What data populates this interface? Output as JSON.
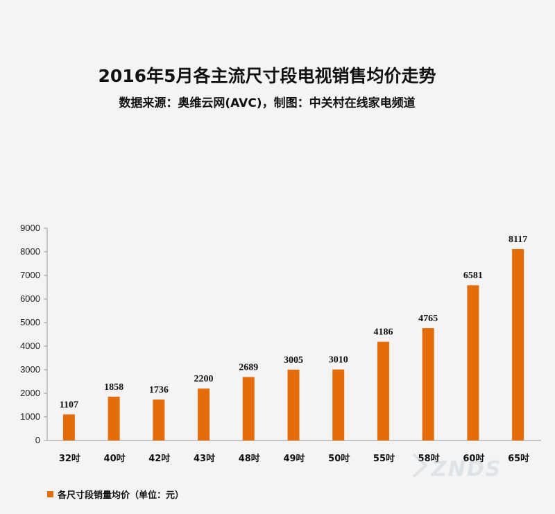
{
  "header": {
    "title": "2016年5月各主流尺寸段电视销售均价走势",
    "subtitle": "数据来源：奥维云网(AVC)，制图：中关村在线家电频道"
  },
  "legend": {
    "label": "各尺寸段销量均价（单位：元）"
  },
  "watermark": {
    "text": "ZNDS"
  },
  "colors": {
    "bar": "#e46c0a",
    "axis": "#999999",
    "background": "#f4f4f4"
  },
  "chart_data": {
    "type": "bar",
    "title": "2016年5月各主流尺寸段电视销售均价走势",
    "subtitle": "数据来源：奥维云网(AVC)，制图：中关村在线家电频道",
    "categories": [
      "32吋",
      "40吋",
      "42吋",
      "43吋",
      "48吋",
      "49吋",
      "50吋",
      "55吋",
      "58吋",
      "60吋",
      "65吋"
    ],
    "series": [
      {
        "name": "各尺寸段销量均价（单位：元）",
        "values": [
          1107,
          1858,
          1736,
          2200,
          2689,
          3005,
          3010,
          4186,
          4765,
          6581,
          8117
        ]
      }
    ],
    "ylim": [
      0,
      9000
    ],
    "yticks": [
      0,
      1000,
      2000,
      3000,
      4000,
      5000,
      6000,
      7000,
      8000,
      9000
    ],
    "grid": false,
    "legend_position": "bottom-left",
    "data_labels": true
  }
}
